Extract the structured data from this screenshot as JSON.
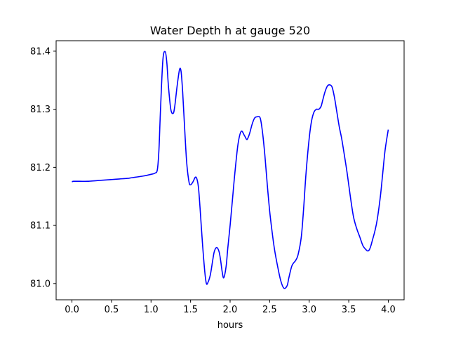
{
  "chart_data": {
    "type": "line",
    "title": "Water Depth h at gauge 520",
    "xlabel": "hours",
    "ylabel": "",
    "xlim": [
      -0.2,
      4.2
    ],
    "ylim": [
      80.972,
      81.418
    ],
    "xticks": [
      0.0,
      0.5,
      1.0,
      1.5,
      2.0,
      2.5,
      3.0,
      3.5,
      4.0
    ],
    "xtick_labels": [
      "0.0",
      "0.5",
      "1.0",
      "1.5",
      "2.0",
      "2.5",
      "3.0",
      "3.5",
      "4.0"
    ],
    "yticks": [
      81.0,
      81.1,
      81.2,
      81.3,
      81.4
    ],
    "ytick_labels": [
      "81.0",
      "81.1",
      "81.2",
      "81.3",
      "81.4"
    ],
    "grid": false,
    "series": [
      {
        "color": "#0000ff",
        "x": [
          0.0,
          0.02,
          0.1,
          0.2,
          0.3,
          0.4,
          0.5,
          0.6,
          0.7,
          0.75,
          0.8,
          0.9,
          1.0,
          1.05,
          1.08,
          1.1,
          1.12,
          1.15,
          1.18,
          1.2,
          1.22,
          1.25,
          1.28,
          1.3,
          1.33,
          1.36,
          1.38,
          1.4,
          1.42,
          1.45,
          1.48,
          1.5,
          1.53,
          1.56,
          1.58,
          1.6,
          1.62,
          1.65,
          1.68,
          1.7,
          1.72,
          1.75,
          1.78,
          1.8,
          1.83,
          1.86,
          1.88,
          1.9,
          1.92,
          1.95,
          1.97,
          2.0,
          2.03,
          2.06,
          2.1,
          2.14,
          2.18,
          2.21,
          2.23,
          2.25,
          2.28,
          2.31,
          2.34,
          2.38,
          2.41,
          2.44,
          2.47,
          2.5,
          2.53,
          2.56,
          2.6,
          2.64,
          2.68,
          2.72,
          2.74,
          2.76,
          2.78,
          2.8,
          2.83,
          2.86,
          2.9,
          2.93,
          2.96,
          3.0,
          3.03,
          3.06,
          3.09,
          3.12,
          3.15,
          3.17,
          3.2,
          3.23,
          3.26,
          3.29,
          3.32,
          3.35,
          3.38,
          3.41,
          3.44,
          3.48,
          3.52,
          3.56,
          3.6,
          3.64,
          3.68,
          3.72,
          3.74,
          3.76,
          3.78,
          3.8,
          3.83,
          3.86,
          3.9,
          3.93,
          3.96,
          4.0
        ],
        "y": [
          81.175,
          81.176,
          81.176,
          81.176,
          81.177,
          81.178,
          81.179,
          81.18,
          81.181,
          81.182,
          81.183,
          81.185,
          81.188,
          81.19,
          81.196,
          81.23,
          81.3,
          81.385,
          81.399,
          81.38,
          81.34,
          81.3,
          81.293,
          81.305,
          81.34,
          81.368,
          81.365,
          81.33,
          81.28,
          81.21,
          81.175,
          81.17,
          81.175,
          81.183,
          81.18,
          81.165,
          81.13,
          81.07,
          81.02,
          81.0,
          81.002,
          81.015,
          81.04,
          81.055,
          81.062,
          81.055,
          81.04,
          81.02,
          81.01,
          81.03,
          81.06,
          81.1,
          81.145,
          81.19,
          81.24,
          81.262,
          81.255,
          81.248,
          81.252,
          81.26,
          81.275,
          81.285,
          81.287,
          81.285,
          81.26,
          81.22,
          81.17,
          81.125,
          81.09,
          81.06,
          81.03,
          81.005,
          80.992,
          80.996,
          81.008,
          81.02,
          81.03,
          81.035,
          81.04,
          81.05,
          81.08,
          81.13,
          81.19,
          81.25,
          81.28,
          81.295,
          81.3,
          81.3,
          81.305,
          81.315,
          81.33,
          81.34,
          81.342,
          81.338,
          81.32,
          81.295,
          81.27,
          81.25,
          81.225,
          81.19,
          81.15,
          81.115,
          81.095,
          81.08,
          81.065,
          81.058,
          81.056,
          81.058,
          81.065,
          81.075,
          81.09,
          81.11,
          81.15,
          81.19,
          81.23,
          81.265
        ]
      }
    ]
  }
}
